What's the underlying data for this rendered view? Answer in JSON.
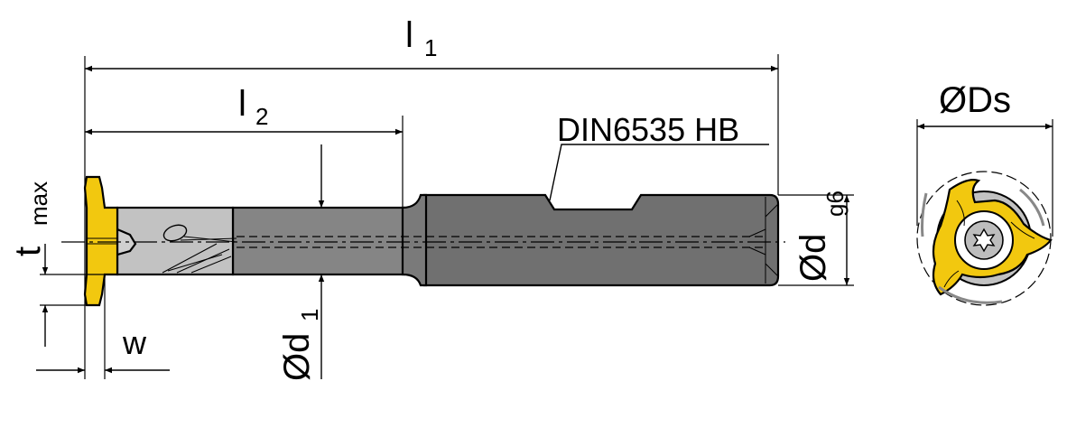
{
  "labels": {
    "l1": "l",
    "l1_sub": "1",
    "l2": "l",
    "l2_sub": "2",
    "din": "DIN6535 HB",
    "tmax": "t",
    "tmax_sub": "max",
    "w": "w",
    "d1": "Ød",
    "d1_sub": "1",
    "d": "Ød",
    "d_sub": "g6",
    "ds": "ØDs"
  },
  "colors": {
    "shank": "#707070",
    "neck": "#858585",
    "head": "#c2c2c2",
    "insert": "#f2c80f",
    "outline": "#000000",
    "background": "#ffffff"
  },
  "icons": {
    "torx": "torx-screw-icon"
  }
}
